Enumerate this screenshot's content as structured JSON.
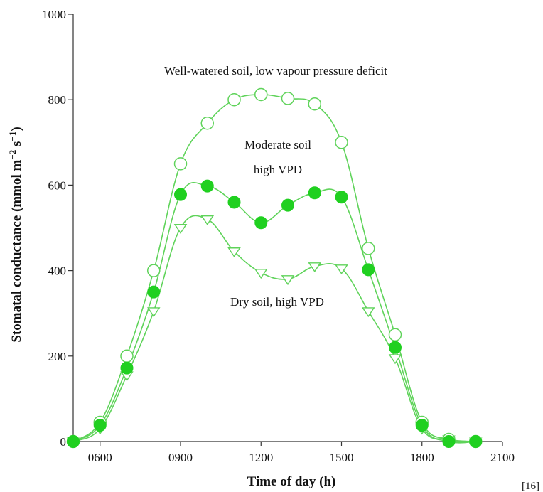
{
  "chart_data": {
    "type": "line",
    "title": "",
    "xlabel": "Time of day (h)",
    "ylabel": "Stomatal conductance (mmol m",
    "ylabel_sup1": "−2",
    "ylabel_mid": " s",
    "ylabel_sup2": "−1",
    "ylabel_end": ")",
    "xlim": [
      500,
      2100
    ],
    "ylim": [
      0,
      1000
    ],
    "x_ticks": [
      {
        "value": 600,
        "label": "0600"
      },
      {
        "value": 900,
        "label": "0900"
      },
      {
        "value": 1200,
        "label": "1200"
      },
      {
        "value": 1500,
        "label": "1500"
      },
      {
        "value": 1800,
        "label": "1800"
      },
      {
        "value": 2100,
        "label": "2100"
      }
    ],
    "y_ticks": [
      {
        "value": 0,
        "label": "0"
      },
      {
        "value": 200,
        "label": "200"
      },
      {
        "value": 400,
        "label": "400"
      },
      {
        "value": 600,
        "label": "600"
      },
      {
        "value": 800,
        "label": "800"
      },
      {
        "value": 1000,
        "label": "1000"
      }
    ],
    "grid": false,
    "line_color": "#5fd35a",
    "marker_color": "#20d020",
    "series": [
      {
        "marker": "open-circle",
        "x": [
          500,
          600,
          700,
          800,
          900,
          1000,
          1100,
          1200,
          1300,
          1400,
          1500,
          1600,
          1700,
          1800,
          1900,
          2000
        ],
        "y": [
          0,
          45,
          200,
          400,
          650,
          745,
          800,
          812,
          803,
          790,
          700,
          452,
          250,
          45,
          5,
          0
        ]
      },
      {
        "marker": "filled-circle",
        "x": [
          500,
          600,
          700,
          800,
          900,
          1000,
          1100,
          1200,
          1300,
          1400,
          1500,
          1600,
          1700,
          1800,
          1900,
          2000
        ],
        "y": [
          0,
          38,
          172,
          350,
          578,
          598,
          560,
          512,
          553,
          582,
          572,
          402,
          220,
          38,
          0,
          0
        ]
      },
      {
        "marker": "open-triangle-down",
        "x": [
          500,
          600,
          700,
          800,
          900,
          1000,
          1100,
          1200,
          1300,
          1400,
          1500,
          1600,
          1700,
          1800,
          1900,
          2000
        ],
        "y": [
          0,
          30,
          155,
          305,
          500,
          520,
          445,
          395,
          380,
          410,
          405,
          305,
          195,
          30,
          5,
          0
        ]
      }
    ],
    "annotations": [
      "Well-watered soil, low vapour pressure deficit",
      "Moderate soil",
      "high VPD",
      "Dry soil, high VPD"
    ]
  },
  "reference": "[16]"
}
